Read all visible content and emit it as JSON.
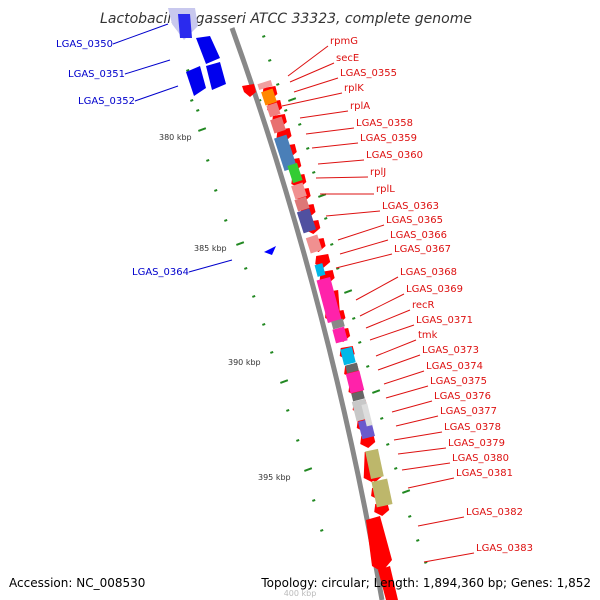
{
  "title": "Lactobacillus gasseri ATCC 33323, complete genome",
  "footer": {
    "accession": "Accession: NC_008530",
    "topology": "Topology: circular; Length: 1,894,360 bp; Genes: 1,852"
  },
  "colors": {
    "backbone": "#888888",
    "forward_label": "#dd1111",
    "reverse_label": "#0000cc",
    "tick": "#228822"
  },
  "ticks": [
    "380 kbp",
    "385 kbp",
    "390 kbp",
    "395 kbp"
  ],
  "forward_genes": [
    "rpmG",
    "secE",
    "LGAS_0355",
    "rplK",
    "rplA",
    "LGAS_0358",
    "LGAS_0359",
    "LGAS_0360",
    "rplJ",
    "rplL",
    "LGAS_0363",
    "LGAS_0365",
    "LGAS_0366",
    "LGAS_0367",
    "LGAS_0368",
    "LGAS_0369",
    "recR",
    "LGAS_0371",
    "tmk",
    "LGAS_0373",
    "LGAS_0374",
    "LGAS_0375",
    "LGAS_0376",
    "LGAS_0377",
    "LGAS_0378",
    "LGAS_0379",
    "LGAS_0380",
    "LGAS_0381",
    "LGAS_0382",
    "LGAS_0383"
  ],
  "reverse_genes": [
    "LGAS_0350",
    "LGAS_0351",
    "LGAS_0352",
    "LGAS_0364"
  ]
}
